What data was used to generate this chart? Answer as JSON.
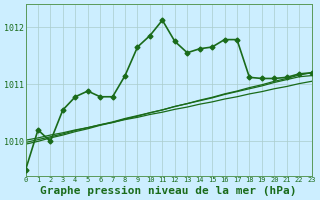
{
  "background_color": "#cceeff",
  "plot_bg_color": "#cceeff",
  "grid_color": "#aacccc",
  "line_color": "#1a6b1a",
  "xlabel": "Graphe pression niveau de la mer (hPa)",
  "xlabel_fontsize": 8,
  "xlim": [
    0,
    23
  ],
  "ylim": [
    1009.4,
    1012.4
  ],
  "yticks": [
    1010,
    1011,
    1012
  ],
  "xticks": [
    0,
    1,
    2,
    3,
    4,
    5,
    6,
    7,
    8,
    9,
    10,
    11,
    12,
    13,
    14,
    15,
    16,
    17,
    18,
    19,
    20,
    21,
    22,
    23
  ],
  "line_main_x": [
    0,
    1,
    2,
    3,
    4,
    5,
    6,
    7,
    8,
    9,
    10,
    11,
    12,
    13,
    14,
    15,
    16,
    17,
    18,
    19,
    20,
    21,
    22,
    23
  ],
  "line_main_y": [
    1009.5,
    1010.2,
    1010.0,
    1010.55,
    1010.78,
    1010.88,
    1010.78,
    1010.78,
    1011.15,
    1011.65,
    1011.85,
    1012.12,
    1011.75,
    1011.55,
    1011.62,
    1011.65,
    1011.78,
    1011.78,
    1011.12,
    1011.1,
    1011.1,
    1011.12,
    1011.18,
    1011.2
  ],
  "line_smooth1_x": [
    0,
    1,
    2,
    3,
    4,
    5,
    6,
    7,
    8,
    9,
    10,
    11,
    12,
    13,
    14,
    15,
    16,
    17,
    18,
    19,
    20,
    21,
    22,
    23
  ],
  "line_smooth1_y": [
    1009.95,
    1010.0,
    1010.06,
    1010.11,
    1010.17,
    1010.22,
    1010.28,
    1010.33,
    1010.39,
    1010.44,
    1010.5,
    1010.55,
    1010.61,
    1010.66,
    1010.72,
    1010.77,
    1010.83,
    1010.88,
    1010.94,
    1010.99,
    1011.05,
    1011.1,
    1011.16,
    1011.2
  ],
  "line_smooth2_x": [
    0,
    1,
    2,
    3,
    4,
    5,
    6,
    7,
    8,
    9,
    10,
    11,
    12,
    13,
    14,
    15,
    16,
    17,
    18,
    19,
    20,
    21,
    22,
    23
  ],
  "line_smooth2_y": [
    1009.98,
    1010.03,
    1010.08,
    1010.13,
    1010.19,
    1010.24,
    1010.29,
    1010.34,
    1010.4,
    1010.45,
    1010.5,
    1010.55,
    1010.61,
    1010.66,
    1010.71,
    1010.76,
    1010.82,
    1010.87,
    1010.92,
    1010.97,
    1011.03,
    1011.08,
    1011.13,
    1011.15
  ],
  "line_smooth3_x": [
    0,
    1,
    2,
    3,
    4,
    5,
    6,
    7,
    8,
    9,
    10,
    11,
    12,
    13,
    14,
    15,
    16,
    17,
    18,
    19,
    20,
    21,
    22,
    23
  ],
  "line_smooth3_y": [
    1010.02,
    1010.06,
    1010.11,
    1010.15,
    1010.2,
    1010.24,
    1010.29,
    1010.33,
    1010.38,
    1010.42,
    1010.47,
    1010.51,
    1010.56,
    1010.6,
    1010.65,
    1010.69,
    1010.74,
    1010.78,
    1010.83,
    1010.87,
    1010.92,
    1010.96,
    1011.01,
    1011.05
  ]
}
